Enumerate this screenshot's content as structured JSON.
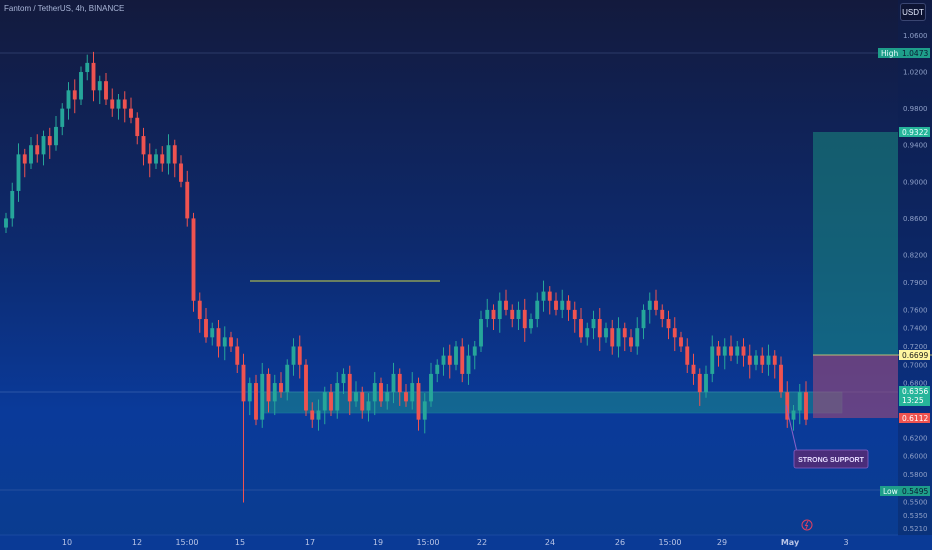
{
  "header": {
    "symbol_title": "Fantom / TetherUS, 4h, BINANCE",
    "currency_button": "USDT"
  },
  "axis": {
    "y_ticks": [
      "1.0600",
      "1.0200",
      "0.9800",
      "0.9400",
      "0.9000",
      "0.8600",
      "0.8200",
      "0.7900",
      "0.7600",
      "0.7400",
      "0.7200",
      "0.7000",
      "0.6800",
      "0.6600",
      "0.6400",
      "0.6200",
      "0.6000",
      "0.5800",
      "0.5650",
      "0.5500",
      "0.5350",
      "0.5210"
    ],
    "x_ticks": [
      "10",
      "12",
      "15:00",
      "15",
      "17",
      "19",
      "15:00",
      "22",
      "24",
      "26",
      "15:00",
      "29",
      "May",
      "3"
    ]
  },
  "price_tags": {
    "high_label": "High",
    "high_value": "1.0473",
    "target_value": "0.9322",
    "entry_value": "0.6699",
    "current_value": "0.6356",
    "countdown": "13:25",
    "stop_value": "0.6112",
    "low_label": "Low",
    "low_value": "0.5495"
  },
  "annotation": {
    "callout_text": "STRONG SUPPORT"
  },
  "colors": {
    "bull": "#26a69a",
    "bear": "#ef5350",
    "resistance_line": "#c8d24a",
    "support_zone": "#1e9e8a",
    "target_zone": "#1a8c80",
    "stop_zone": "#a04a78",
    "callout_bg": "#4a2d7a"
  },
  "chart_data": {
    "type": "candlestick",
    "instrument": "Fantom / TetherUS",
    "interval": "4h",
    "exchange": "BINANCE",
    "ylim": [
      0.515,
      1.09
    ],
    "levels": {
      "high": 1.0473,
      "low": 0.5495,
      "target": 0.9322,
      "entry": 0.6699,
      "current": 0.6356,
      "stop": 0.6112,
      "resistance": 0.747,
      "support_top": 0.637,
      "support_bottom": 0.615
    },
    "closes": [
      0.86,
      0.89,
      0.93,
      0.92,
      0.94,
      0.93,
      0.95,
      0.94,
      0.96,
      0.98,
      1.0,
      0.99,
      1.02,
      1.03,
      1.0,
      1.01,
      0.99,
      0.98,
      0.99,
      0.98,
      0.97,
      0.95,
      0.93,
      0.92,
      0.93,
      0.92,
      0.94,
      0.92,
      0.9,
      0.86,
      0.77,
      0.75,
      0.73,
      0.74,
      0.72,
      0.73,
      0.72,
      0.7,
      0.66,
      0.68,
      0.64,
      0.69,
      0.66,
      0.68,
      0.67,
      0.7,
      0.72,
      0.7,
      0.65,
      0.64,
      0.65,
      0.67,
      0.65,
      0.68,
      0.69,
      0.66,
      0.67,
      0.65,
      0.66,
      0.68,
      0.66,
      0.67,
      0.69,
      0.67,
      0.66,
      0.68,
      0.64,
      0.66,
      0.69,
      0.7,
      0.71,
      0.7,
      0.72,
      0.69,
      0.71,
      0.72,
      0.75,
      0.76,
      0.75,
      0.77,
      0.76,
      0.75,
      0.76,
      0.74,
      0.75,
      0.77,
      0.78,
      0.77,
      0.76,
      0.77,
      0.76,
      0.75,
      0.73,
      0.74,
      0.75,
      0.73,
      0.74,
      0.72,
      0.74,
      0.73,
      0.72,
      0.74,
      0.76,
      0.77,
      0.76,
      0.75,
      0.74,
      0.73,
      0.72,
      0.7,
      0.69,
      0.67,
      0.69,
      0.72,
      0.71,
      0.72,
      0.71,
      0.72,
      0.71,
      0.7,
      0.71,
      0.7,
      0.71,
      0.7,
      0.67,
      0.64,
      0.65,
      0.67,
      0.64
    ]
  }
}
